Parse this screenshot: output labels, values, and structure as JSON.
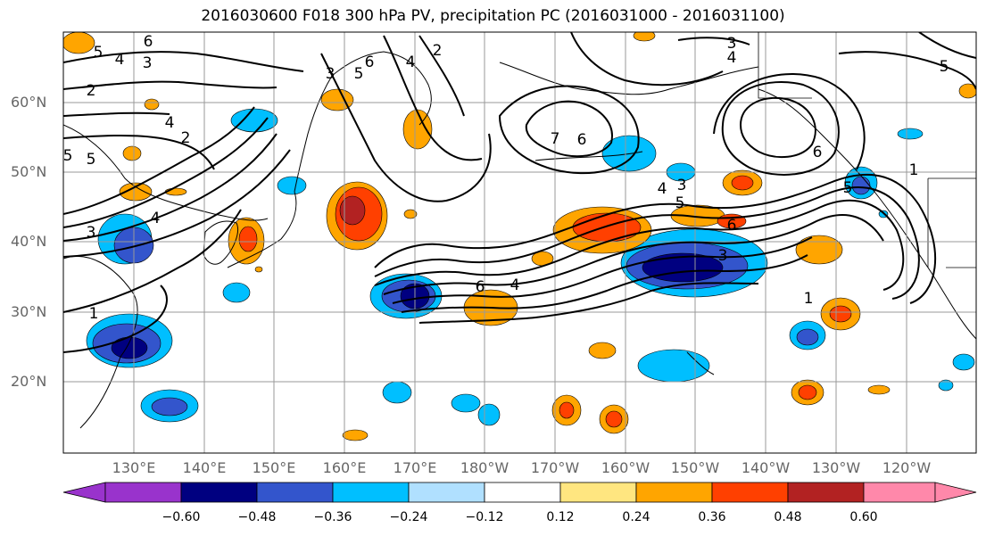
{
  "title": "2016030600 F018 300 hPa PV, precipitation PC (2016031000 - 2016031100)",
  "lat_labels": [
    "60°N",
    "50°N",
    "40°N",
    "30°N",
    "20°N"
  ],
  "lon_labels": [
    "130°E",
    "140°E",
    "150°E",
    "160°E",
    "170°E",
    "180°W",
    "170°W",
    "160°W",
    "150°W",
    "140°W",
    "130°W",
    "120°W"
  ],
  "colorbar": {
    "ticks": [
      "−0.60",
      "−0.48",
      "−0.36",
      "−0.24",
      "−0.12",
      "0.12",
      "0.24",
      "0.36",
      "0.48",
      "0.60"
    ],
    "colors": [
      "#9933cc",
      "#000080",
      "#3355cc",
      "#00bfff",
      "#b0e0ff",
      "#ffffff",
      "#ffe680",
      "#ffa500",
      "#ff4000",
      "#b22222",
      "#ff88aa"
    ]
  },
  "contour_labels": [
    "6",
    "5",
    "4",
    "3",
    "2",
    "6",
    "5",
    "4",
    "2",
    "3",
    "4",
    "5",
    "2",
    "4",
    "5",
    "3",
    "1",
    "7",
    "6",
    "4",
    "3",
    "5",
    "6",
    "3",
    "6",
    "4",
    "1",
    "5",
    "6",
    "1",
    "3",
    "4",
    "5"
  ]
}
